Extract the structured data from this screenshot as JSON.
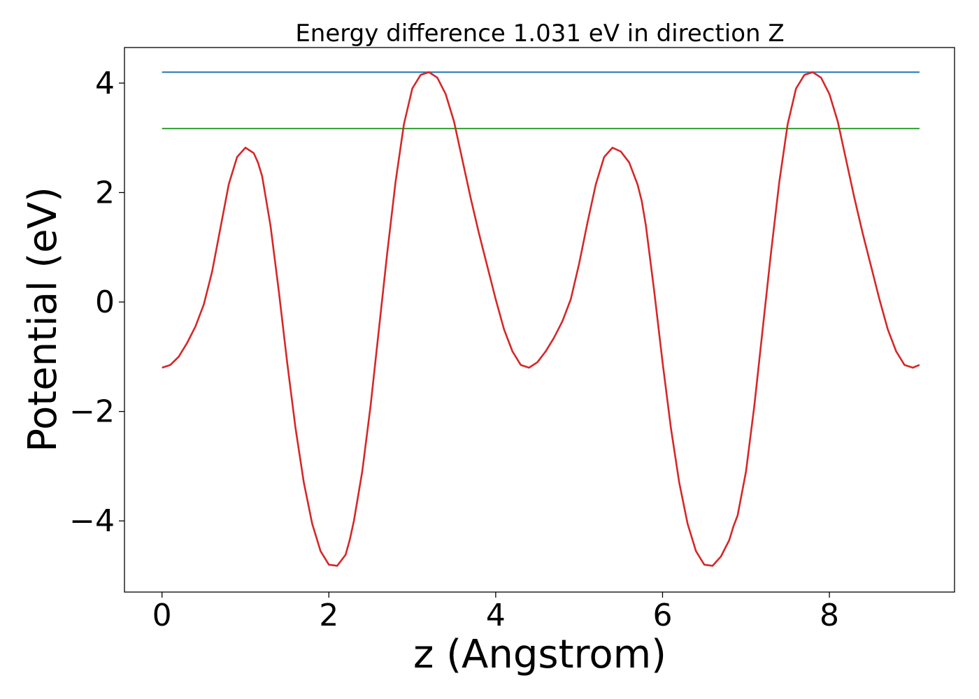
{
  "chart_data": {
    "type": "line",
    "title": "Energy difference 1.031 eV in direction Z",
    "xlabel": "z (Angstrom)",
    "ylabel": "Potential (eV)",
    "xlim": [
      -0.45,
      9.5
    ],
    "ylim": [
      -5.3,
      4.65
    ],
    "xticks": [
      0,
      2,
      4,
      6,
      8
    ],
    "yticks": [
      -4,
      -2,
      0,
      2,
      4
    ],
    "xtick_labels": [
      "0",
      "2",
      "4",
      "6",
      "8"
    ],
    "ytick_labels": [
      "−4",
      "−2",
      "0",
      "2",
      "4"
    ],
    "grid": false,
    "legend": "none",
    "series": [
      {
        "color": "#1f77b4",
        "x": [
          0,
          9.08
        ],
        "y": [
          4.2,
          4.2
        ]
      },
      {
        "color": "#2ca02c",
        "x": [
          0,
          9.08
        ],
        "y": [
          3.17,
          3.17
        ]
      },
      {
        "color": "#d62728",
        "x": [
          0,
          0.1,
          0.2,
          0.3,
          0.4,
          0.5,
          0.6,
          0.7,
          0.8,
          0.9,
          1.0,
          1.1,
          1.15,
          1.2,
          1.3,
          1.4,
          1.5,
          1.6,
          1.7,
          1.8,
          1.9,
          2.0,
          2.1,
          2.2,
          2.25,
          2.3,
          2.4,
          2.5,
          2.6,
          2.7,
          2.8,
          2.9,
          3.0,
          3.1,
          3.2,
          3.3,
          3.4,
          3.45,
          3.5,
          3.6,
          3.7,
          3.8,
          3.9,
          4.0,
          4.1,
          4.2,
          4.3,
          4.4,
          4.5,
          4.6,
          4.7,
          4.8,
          4.9,
          5.0,
          5.1,
          5.2,
          5.3,
          5.4,
          5.5,
          5.6,
          5.7,
          5.75,
          5.8,
          5.9,
          6.0,
          6.1,
          6.2,
          6.3,
          6.4,
          6.5,
          6.6,
          6.7,
          6.8,
          6.85,
          6.9,
          7.0,
          7.1,
          7.2,
          7.3,
          7.4,
          7.5,
          7.6,
          7.7,
          7.8,
          7.9,
          8.0,
          8.05,
          8.1,
          8.2,
          8.3,
          8.4,
          8.5,
          8.6,
          8.7,
          8.8,
          8.9,
          9.0,
          9.08
        ],
        "y": [
          -1.2,
          -1.15,
          -1.0,
          -0.75,
          -0.45,
          -0.05,
          0.55,
          1.35,
          2.15,
          2.65,
          2.82,
          2.72,
          2.55,
          2.3,
          1.4,
          0.2,
          -1.1,
          -2.3,
          -3.3,
          -4.05,
          -4.55,
          -4.8,
          -4.82,
          -4.62,
          -4.35,
          -4.0,
          -3.1,
          -1.9,
          -0.5,
          0.9,
          2.2,
          3.25,
          3.9,
          4.15,
          4.2,
          4.1,
          3.8,
          3.55,
          3.3,
          2.6,
          1.9,
          1.25,
          0.65,
          0.05,
          -0.5,
          -0.9,
          -1.15,
          -1.2,
          -1.1,
          -0.9,
          -0.65,
          -0.35,
          0.05,
          0.7,
          1.45,
          2.15,
          2.65,
          2.82,
          2.75,
          2.55,
          2.15,
          1.85,
          1.4,
          0.2,
          -1.1,
          -2.3,
          -3.3,
          -4.05,
          -4.55,
          -4.8,
          -4.82,
          -4.65,
          -4.35,
          -4.1,
          -3.9,
          -3.1,
          -1.9,
          -0.5,
          0.9,
          2.2,
          3.25,
          3.9,
          4.15,
          4.2,
          4.1,
          3.8,
          3.55,
          3.3,
          2.6,
          1.9,
          1.25,
          0.65,
          0.05,
          -0.5,
          -0.9,
          -1.15,
          -1.2,
          -1.15
        ]
      }
    ]
  }
}
